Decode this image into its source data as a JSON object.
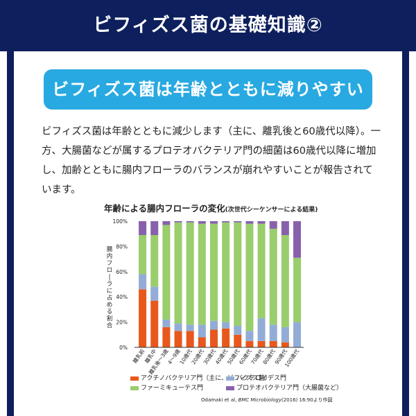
{
  "header": {
    "title": "ビフィズス菌の基礎知識②"
  },
  "banner": {
    "text": "ビフィズス菌は年齢とともに減りやすい"
  },
  "paragraph": "ビフィズス菌は年齢とともに減少します（主に、離乳後と60歳代以降）。一方、大腸菌などが属するプロテオバクテリア門の細菌は60歳代以降に増加し、加齢とともに腸内フローラのバランスが崩れやすいことが報告されています。",
  "chart": {
    "title": "年齢による腸内フローラの変化",
    "subtitle": "(次世代シーケンサーによる結果)"
  },
  "source": {
    "authors": "Odamaki et al,",
    "journal": "BMC Microbiology",
    "rest": "(2016) 16:90より作図"
  },
  "colors": {
    "actinobacteria": "#e8581c",
    "bacteroidetes": "#93acd6",
    "firmicutes": "#9acd6c",
    "proteobacteria": "#8861ad"
  },
  "chart_data": {
    "type": "bar",
    "stacked": true,
    "ylabel": "腸内フローラに占める割合",
    "ylim": [
      0,
      100
    ],
    "yticks": [
      "0%",
      "20%",
      "40%",
      "60%",
      "80%",
      "100%"
    ],
    "categories": [
      "離乳前",
      "離乳中",
      "離乳後〜3歳",
      "4〜9歳",
      "10歳代",
      "20歳代",
      "30歳代",
      "40歳代",
      "50歳代",
      "60歳代",
      "70歳代",
      "80歳代",
      "90歳代",
      "100歳代"
    ],
    "series": [
      {
        "name": "アクチノバクテリア門（主に、ビフィズス菌）",
        "color": "#e8581c",
        "values": [
          46,
          37,
          16,
          13,
          13,
          8,
          14,
          15,
          10,
          5,
          5,
          5,
          4,
          0
        ]
      },
      {
        "name": "バクテロイデス門",
        "color": "#93acd6",
        "values": [
          12,
          11,
          6,
          6,
          5,
          10,
          7,
          5,
          7,
          8,
          18,
          13,
          12,
          20
        ]
      },
      {
        "name": "ファーミキューテス門",
        "color": "#9acd6c",
        "values": [
          31,
          41,
          75,
          80,
          81,
          80,
          77,
          79,
          82,
          85,
          75,
          76,
          73,
          51
        ]
      },
      {
        "name": "プロテオバクテリア門（大腸菌など）",
        "color": "#8861ad",
        "values": [
          11,
          11,
          3,
          1,
          1,
          2,
          2,
          1,
          1,
          2,
          2,
          6,
          11,
          29
        ]
      }
    ]
  }
}
